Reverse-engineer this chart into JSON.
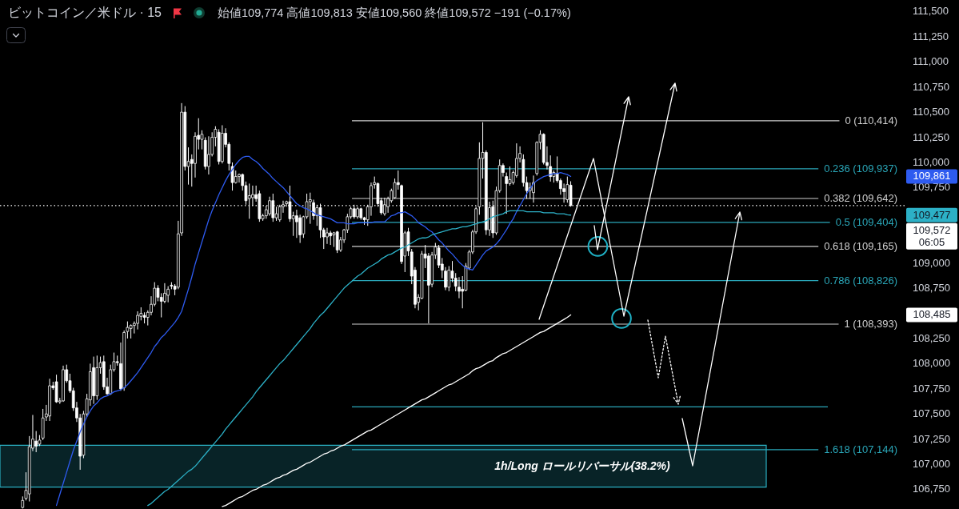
{
  "chart_data": {
    "type": "candlestick",
    "title": "ビットコイン／米ドル · 15",
    "subtitle": "始値109,774 高値109,813 安値109,560 終値109,572 −191 (−0.17%)",
    "categories": [
      null,
      null,
      null,
      null,
      null,
      null,
      null,
      null,
      null,
      null,
      null,
      null,
      null,
      null,
      null,
      null,
      null,
      null,
      null,
      null,
      null,
      null,
      null,
      null,
      null,
      null,
      null,
      null,
      null,
      null,
      null,
      null,
      null,
      null,
      null,
      null,
      null,
      null,
      null,
      null,
      null,
      null,
      null,
      null,
      null,
      null,
      null,
      null,
      null,
      null,
      null,
      null,
      null,
      null,
      null,
      null,
      null,
      null,
      null,
      null,
      null,
      null,
      null,
      null,
      null,
      null,
      null,
      null,
      null,
      null,
      null,
      null,
      null,
      null,
      null,
      null,
      null,
      null,
      null,
      null,
      null,
      null,
      null,
      null,
      null,
      null,
      null,
      null,
      null,
      null,
      null,
      null,
      null,
      null,
      null,
      null,
      null,
      null,
      null,
      null,
      null,
      null,
      null,
      null,
      null,
      null,
      null,
      null,
      null,
      null,
      null,
      null,
      null,
      null,
      null,
      null,
      null,
      null,
      null,
      null,
      null,
      null,
      null,
      null,
      null,
      null,
      null,
      null,
      null,
      null,
      null,
      null,
      null,
      null,
      null,
      null,
      null,
      null,
      null,
      null,
      null,
      null,
      null,
      null,
      null,
      null,
      null,
      null,
      null,
      null,
      null,
      null,
      null,
      null,
      null,
      null,
      null,
      null,
      null,
      null,
      null,
      null,
      null,
      null,
      null,
      null,
      null,
      null,
      null,
      null,
      null,
      null,
      null,
      null,
      null,
      null,
      null,
      null,
      null,
      null,
      null,
      null,
      null,
      null,
      null,
      null,
      null,
      null,
      null,
      null,
      null,
      null,
      null,
      null,
      null,
      null,
      null,
      null,
      null,
      null,
      null,
      null,
      null,
      null,
      null,
      null,
      null,
      null,
      null,
      null,
      null,
      null,
      null,
      null,
      null,
      null,
      null,
      null,
      null,
      null,
      null,
      null,
      null,
      null,
      null,
      null,
      null,
      null,
      null,
      null,
      null,
      null,
      null,
      null,
      null,
      null,
      null,
      null,
      null,
      null,
      null,
      null,
      null,
      null,
      null,
      null,
      null,
      null,
      null,
      null,
      null,
      null,
      null,
      null,
      null,
      null,
      null,
      null,
      null,
      null,
      null,
      null,
      null,
      null,
      null
    ],
    "ohlc": [
      null,
      null,
      null,
      null,
      null,
      [
        106570,
        106680,
        106560,
        106640
      ],
      [
        106660,
        106920,
        106640,
        106740
      ],
      [
        106705,
        107280,
        106630,
        107175
      ],
      [
        107160,
        107490,
        107130,
        107250
      ],
      [
        107230,
        107330,
        107120,
        107180
      ],
      [
        107200,
        107290,
        107180,
        107240
      ],
      [
        107260,
        107550,
        107240,
        107460
      ],
      [
        107470,
        107590,
        107430,
        107500
      ],
      [
        107480,
        107850,
        107430,
        107780
      ],
      [
        107780,
        107820,
        107740,
        107760
      ],
      [
        107820,
        107890,
        107610,
        107620
      ],
      [
        107620,
        107660,
        107600,
        107630
      ],
      [
        107630,
        107980,
        107620,
        107940
      ],
      [
        107940,
        107990,
        107810,
        107830
      ],
      [
        107830,
        107900,
        107710,
        107730
      ],
      [
        107730,
        107760,
        107530,
        107560
      ],
      [
        107560,
        107620,
        107420,
        107460
      ],
      [
        107460,
        107500,
        106945,
        107080
      ],
      [
        107090,
        107530,
        107060,
        107500
      ],
      [
        107500,
        107700,
        107470,
        107650
      ],
      [
        107640,
        108000,
        107580,
        107920
      ],
      [
        107960,
        108070,
        107600,
        107680
      ],
      [
        107680,
        108080,
        107640,
        107960
      ],
      [
        107960,
        108070,
        107900,
        108010
      ],
      [
        108020,
        108080,
        107740,
        107770
      ],
      [
        107770,
        107860,
        107690,
        107700
      ],
      [
        107700,
        107990,
        107690,
        107940
      ],
      [
        107940,
        108110,
        107920,
        108020
      ],
      [
        108020,
        108080,
        107980,
        108010
      ],
      [
        108000,
        108210,
        107730,
        107750
      ],
      [
        107760,
        108330,
        107730,
        108310
      ],
      [
        108320,
        108420,
        108250,
        108360
      ],
      [
        108350,
        108390,
        108250,
        108380
      ],
      [
        108380,
        108420,
        108300,
        108400
      ],
      [
        108400,
        108520,
        108340,
        108480
      ],
      [
        108470,
        108560,
        108430,
        108500
      ],
      [
        108480,
        108510,
        108400,
        108460
      ],
      [
        108460,
        108530,
        108380,
        108510
      ],
      [
        108510,
        108670,
        108480,
        108590
      ],
      [
        108590,
        108810,
        108570,
        108750
      ],
      [
        108750,
        108780,
        108620,
        108660
      ],
      [
        108660,
        108700,
        108460,
        108620
      ],
      [
        108620,
        108800,
        108600,
        108700
      ],
      [
        108680,
        108770,
        108610,
        108740
      ],
      [
        108780,
        108810,
        108740,
        108770
      ],
      [
        108770,
        108790,
        108680,
        108740
      ],
      [
        108760,
        109420,
        108740,
        109290
      ],
      [
        109300,
        110590,
        109270,
        110500
      ],
      [
        110500,
        110560,
        109920,
        109960
      ],
      [
        109960,
        110150,
        109780,
        110010
      ],
      [
        110030,
        110080,
        109760,
        109990
      ],
      [
        109990,
        110300,
        109850,
        110260
      ],
      [
        110270,
        110440,
        110130,
        110230
      ],
      [
        110230,
        110320,
        110130,
        110280
      ],
      [
        110220,
        110250,
        109930,
        109960
      ],
      [
        109960,
        110260,
        109880,
        110080
      ],
      [
        110080,
        110300,
        110060,
        110250
      ],
      [
        110250,
        110360,
        110160,
        110330
      ],
      [
        110300,
        110330,
        109980,
        110010
      ],
      [
        110010,
        110370,
        109990,
        110290
      ],
      [
        110290,
        110340,
        110150,
        110180
      ],
      [
        110180,
        110200,
        109920,
        109990
      ],
      [
        109960,
        110000,
        109720,
        109800
      ],
      [
        109800,
        109920,
        109790,
        109860
      ],
      [
        109860,
        109890,
        109800,
        109880
      ],
      [
        109880,
        109890,
        109720,
        109770
      ],
      [
        109770,
        109810,
        109580,
        109620
      ],
      [
        109640,
        109790,
        109440,
        109670
      ],
      [
        109650,
        109770,
        109570,
        109680
      ],
      [
        109680,
        109770,
        109610,
        109640
      ],
      [
        109690,
        109720,
        109410,
        109440
      ],
      [
        109440,
        109490,
        109420,
        109470
      ],
      [
        109470,
        109570,
        109440,
        109530
      ],
      [
        109490,
        109660,
        109470,
        109620
      ],
      [
        109620,
        109690,
        109410,
        109450
      ],
      [
        109450,
        109560,
        109420,
        109490
      ],
      [
        109430,
        109580,
        109410,
        109560
      ],
      [
        109560,
        109620,
        109500,
        109580
      ],
      [
        109590,
        109620,
        109560,
        109610
      ],
      [
        109610,
        109770,
        109410,
        109440
      ],
      [
        109440,
        109510,
        109270,
        109470
      ],
      [
        109470,
        109530,
        109250,
        109410
      ],
      [
        109450,
        109480,
        109200,
        109280
      ],
      [
        109290,
        109470,
        109250,
        109460
      ],
      [
        109460,
        109690,
        109440,
        109610
      ],
      [
        109610,
        109700,
        109390,
        109630
      ],
      [
        109600,
        109630,
        109430,
        109470
      ],
      [
        109470,
        109580,
        109370,
        109550
      ],
      [
        109550,
        109590,
        109250,
        109330
      ],
      [
        109330,
        109350,
        109140,
        109260
      ],
      [
        109260,
        109350,
        109190,
        109300
      ],
      [
        109300,
        109320,
        109180,
        109270
      ],
      [
        109280,
        109310,
        109160,
        109300
      ],
      [
        109310,
        109320,
        109100,
        109130
      ],
      [
        109130,
        109260,
        109110,
        109230
      ],
      [
        109230,
        109340,
        109200,
        109330
      ],
      [
        109330,
        109490,
        109300,
        109460
      ],
      [
        109460,
        109560,
        109440,
        109540
      ],
      [
        109540,
        109580,
        109440,
        109460
      ],
      [
        109460,
        109560,
        109440,
        109540
      ],
      [
        109540,
        109550,
        109430,
        109450
      ],
      [
        109450,
        109460,
        109380,
        109430
      ],
      [
        109430,
        109580,
        109370,
        109560
      ],
      [
        109560,
        109800,
        109470,
        109770
      ],
      [
        109780,
        109860,
        109740,
        109800
      ],
      [
        109790,
        109800,
        109560,
        109590
      ],
      [
        109620,
        109650,
        109480,
        109500
      ],
      [
        109490,
        109650,
        109470,
        109580
      ],
      [
        109560,
        109660,
        109500,
        109640
      ],
      [
        109620,
        109740,
        109600,
        109720
      ],
      [
        109650,
        109840,
        109640,
        109800
      ],
      [
        109800,
        109920,
        109730,
        109780
      ],
      [
        109770,
        109780,
        108990,
        109015
      ],
      [
        109070,
        109320,
        108910,
        109300
      ],
      [
        109310,
        109350,
        109070,
        109120
      ],
      [
        109110,
        109140,
        108790,
        108870
      ],
      [
        108930,
        108960,
        108550,
        108590
      ],
      [
        108610,
        108690,
        108530,
        108660
      ],
      [
        108650,
        109120,
        108640,
        109090
      ],
      [
        109090,
        109180,
        108950,
        109050
      ],
      [
        109070,
        109100,
        108400,
        108780
      ],
      [
        108790,
        109110,
        108760,
        109080
      ],
      [
        109080,
        109200,
        109040,
        109160
      ],
      [
        109150,
        109180,
        108950,
        108980
      ],
      [
        108990,
        109050,
        108850,
        108930
      ],
      [
        108920,
        108960,
        108730,
        108760
      ],
      [
        108760,
        108970,
        108720,
        108930
      ],
      [
        108920,
        109020,
        108810,
        108850
      ],
      [
        108850,
        108900,
        108720,
        108770
      ],
      [
        108760,
        108860,
        108650,
        108720
      ],
      [
        108740,
        108870,
        108550,
        108720
      ],
      [
        108730,
        109000,
        108720,
        108970
      ],
      [
        108950,
        109130,
        108930,
        109110
      ],
      [
        109110,
        109330,
        109090,
        109310
      ],
      [
        109310,
        109560,
        109290,
        109540
      ],
      [
        109560,
        110200,
        109480,
        110040
      ],
      [
        110040,
        110400,
        109840,
        110100
      ],
      [
        110100,
        110120,
        109280,
        109330
      ],
      [
        109330,
        109610,
        109270,
        109550
      ],
      [
        109560,
        109620,
        109250,
        109300
      ],
      [
        109300,
        109760,
        109280,
        109720
      ],
      [
        109720,
        110030,
        109700,
        109970
      ],
      [
        109970,
        109990,
        109860,
        109900
      ],
      [
        109860,
        109900,
        109490,
        109790
      ],
      [
        109790,
        109960,
        109770,
        109830
      ],
      [
        109800,
        109920,
        109780,
        109900
      ],
      [
        109870,
        110190,
        109850,
        110040
      ],
      [
        110040,
        110160,
        110000,
        110090
      ],
      [
        110030,
        110080,
        109760,
        109800
      ],
      [
        109800,
        109860,
        109640,
        109720
      ],
      [
        109720,
        109800,
        109640,
        109750
      ],
      [
        109700,
        109870,
        109600,
        109800
      ],
      [
        109890,
        110210,
        109870,
        110200
      ],
      [
        110200,
        110320,
        110130,
        110280
      ],
      [
        110280,
        110290,
        109980,
        110000
      ],
      [
        110000,
        110160,
        109930,
        109970
      ],
      [
        109960,
        110070,
        109810,
        109860
      ],
      [
        109860,
        109920,
        109800,
        109900
      ],
      [
        109890,
        110060,
        109800,
        109820
      ],
      [
        109820,
        109840,
        109680,
        109740
      ],
      [
        109740,
        109790,
        109600,
        109710
      ],
      [
        109630,
        109860,
        109600,
        109780
      ],
      [
        109774,
        109813,
        109560,
        109572
      ],
      null,
      null,
      null,
      null,
      null,
      null,
      null,
      null,
      null,
      null,
      null,
      null,
      null,
      null,
      null,
      null,
      null,
      null,
      null,
      null,
      null,
      null,
      null,
      null,
      null,
      null,
      null,
      null,
      null,
      null,
      null,
      null,
      null,
      null,
      null,
      null,
      null,
      null,
      null,
      null,
      null,
      null,
      null,
      null,
      null,
      null,
      null,
      null,
      null,
      null,
      null,
      null,
      null,
      null,
      null,
      null,
      null,
      null,
      null,
      null,
      null,
      null,
      null,
      null,
      null,
      null,
      null,
      null,
      null,
      null,
      null,
      null,
      null,
      null,
      null,
      null,
      null,
      null,
      null,
      null,
      null,
      null,
      null,
      null,
      null,
      null,
      null,
      null,
      null,
      null,
      null,
      null,
      null,
      null,
      null,
      null,
      null
    ],
    "series": [
      {
        "type": "line",
        "color": "#2e5bf0",
        "values": [
          null,
          null,
          null,
          null,
          null,
          null,
          null,
          null,
          null,
          null,
          null,
          null,
          null,
          null,
          null,
          106590,
          106700,
          106810,
          106920,
          107030,
          107140,
          107230,
          107320,
          107400,
          107470,
          107530,
          107580,
          107610,
          107650,
          107670,
          107680,
          107700,
          107720,
          107730,
          107740,
          107760,
          107790,
          107830,
          107870,
          107910,
          107960,
          108010,
          108060,
          108110,
          108170,
          108210,
          108260,
          108290,
          108330,
          108370,
          108410,
          108460,
          108520,
          108630,
          108740,
          108860,
          108990,
          109100,
          109210,
          109320,
          109430,
          109520,
          109600,
          109680,
          109750,
          109820,
          109880,
          109930,
          109980,
          110020,
          110050,
          110060,
          110060,
          110030,
          110010,
          109980,
          109940,
          109910,
          109880,
          109840,
          109810,
          109780,
          109750,
          109710,
          109670,
          109630,
          109590,
          109570,
          109550,
          109540,
          109520,
          109500,
          109480,
          109470,
          109460,
          109450,
          109440,
          109420,
          109400,
          109400,
          109400,
          109390,
          109390,
          109390,
          109400,
          109400,
          109400,
          109400,
          109400,
          109410,
          109410,
          109410,
          109410,
          109440,
          109470,
          109480,
          109500,
          109500,
          109510,
          109490,
          109470,
          109440,
          109400,
          109380,
          109360,
          109330,
          109310,
          109270,
          109230,
          109200,
          109160,
          109120,
          109090,
          109050,
          109010,
          108980,
          108950,
          108940,
          108930,
          108980,
          109030,
          109080,
          109120,
          109140,
          109160,
          109190,
          109230,
          109280,
          109330,
          109390,
          109440,
          109510,
          109570,
          109630,
          109690,
          109740,
          109790,
          109820,
          109840,
          109860,
          109870,
          109880,
          109890,
          109890,
          109900,
          109890,
          109880,
          109861,
          null,
          null,
          null,
          null,
          null,
          null,
          null,
          null,
          null,
          null,
          null,
          null,
          null,
          null,
          null,
          null,
          null,
          null,
          null,
          null,
          null,
          null,
          null,
          null,
          null,
          null,
          null,
          null,
          null,
          null,
          null,
          null,
          null,
          null,
          null,
          null,
          null,
          null,
          null,
          null,
          null,
          null,
          null,
          null,
          null,
          null,
          null,
          null,
          null,
          null,
          null,
          null,
          null,
          null,
          null,
          null,
          null,
          null,
          null,
          null,
          null,
          null,
          null,
          null,
          null,
          null,
          null,
          null,
          null,
          null,
          null,
          null,
          null,
          null,
          null,
          null,
          null,
          null,
          null,
          null,
          null,
          null,
          null,
          null,
          null,
          null,
          null,
          null,
          null,
          null,
          null,
          null,
          null,
          null,
          null,
          null,
          null
        ]
      },
      {
        "type": "line",
        "color": "#2cb0c6",
        "values": [
          null,
          null,
          null,
          null,
          null,
          null,
          null,
          null,
          null,
          null,
          null,
          null,
          null,
          null,
          null,
          null,
          null,
          null,
          null,
          null,
          null,
          null,
          null,
          null,
          null,
          null,
          null,
          null,
          null,
          null,
          null,
          null,
          null,
          null,
          null,
          null,
          null,
          null,
          null,
          null,
          null,
          null,
          106590,
          106610,
          106640,
          106670,
          106700,
          106730,
          106750,
          106780,
          106810,
          106840,
          106870,
          106900,
          106930,
          106950,
          106980,
          107020,
          107060,
          107100,
          107140,
          107180,
          107220,
          107260,
          107300,
          107350,
          107390,
          107430,
          107470,
          107510,
          107550,
          107590,
          107630,
          107670,
          107720,
          107760,
          107800,
          107840,
          107880,
          107920,
          107960,
          108000,
          108030,
          108070,
          108110,
          108150,
          108190,
          108230,
          108270,
          108310,
          108350,
          108400,
          108440,
          108480,
          108510,
          108550,
          108590,
          108630,
          108670,
          108710,
          108750,
          108780,
          108810,
          108840,
          108870,
          108890,
          108920,
          108950,
          108970,
          108990,
          109010,
          109040,
          109060,
          109080,
          109090,
          109110,
          109130,
          109150,
          109160,
          109180,
          109200,
          109220,
          109240,
          109250,
          109250,
          109260,
          109280,
          109290,
          109300,
          109310,
          109320,
          109330,
          109340,
          109340,
          109350,
          109360,
          109360,
          109370,
          109380,
          109390,
          109400,
          109410,
          109420,
          109440,
          109460,
          109470,
          109480,
          109490,
          109510,
          109520,
          109520,
          109520,
          109520,
          109520,
          109510,
          109510,
          109510,
          109510,
          109510,
          109500,
          109500,
          109500,
          109500,
          109490,
          109490,
          109490,
          109480,
          109477,
          null,
          null,
          null,
          null,
          null,
          null,
          null,
          null,
          null,
          null,
          null,
          null,
          null,
          null,
          null,
          null,
          null,
          null,
          null,
          null,
          null,
          null,
          null,
          null,
          null,
          null,
          null,
          null,
          null,
          null,
          null,
          null,
          null,
          null,
          null,
          null,
          null,
          null,
          null,
          null,
          null,
          null,
          null,
          null,
          null,
          null,
          null,
          null,
          null,
          null,
          null,
          null,
          null,
          null,
          null,
          null,
          null,
          null,
          null,
          null,
          null,
          null,
          null,
          null,
          null,
          null,
          null,
          null,
          null,
          null,
          null,
          null,
          null,
          null,
          null,
          null,
          null,
          null,
          null,
          null,
          null,
          null,
          null,
          null,
          null,
          null,
          null,
          null,
          null,
          null,
          null,
          null,
          null,
          null,
          null,
          null,
          null
        ]
      },
      {
        "type": "line",
        "color": "#ffffff",
        "values": [
          null,
          null,
          null,
          null,
          null,
          null,
          null,
          null,
          null,
          null,
          null,
          null,
          null,
          null,
          null,
          null,
          null,
          null,
          null,
          null,
          null,
          null,
          null,
          null,
          null,
          null,
          null,
          null,
          null,
          null,
          null,
          null,
          null,
          null,
          null,
          null,
          null,
          null,
          null,
          null,
          null,
          null,
          null,
          null,
          null,
          null,
          null,
          null,
          null,
          null,
          null,
          null,
          null,
          null,
          null,
          null,
          null,
          null,
          null,
          null,
          null,
          null,
          null,
          null,
          106580,
          106590,
          106610,
          106630,
          106650,
          106670,
          106680,
          106700,
          106720,
          106740,
          106750,
          106770,
          106790,
          106800,
          106820,
          106840,
          106860,
          106870,
          106890,
          106900,
          106920,
          106940,
          106950,
          106970,
          106990,
          107010,
          107020,
          107040,
          107060,
          107080,
          107100,
          107110,
          107130,
          107140,
          107160,
          107180,
          107190,
          107210,
          107230,
          107250,
          107270,
          107290,
          107310,
          107330,
          107340,
          107360,
          107380,
          107400,
          107420,
          107440,
          107460,
          107480,
          107500,
          107520,
          107540,
          107560,
          107580,
          107600,
          107620,
          107640,
          107650,
          107670,
          107690,
          107710,
          107730,
          107750,
          107770,
          107790,
          107800,
          107820,
          107840,
          107860,
          107880,
          107900,
          107930,
          107950,
          107960,
          107980,
          108000,
          108020,
          108030,
          108060,
          108080,
          108100,
          108110,
          108130,
          108150,
          108170,
          108190,
          108210,
          108230,
          108250,
          108270,
          108290,
          108310,
          108320,
          108340,
          108360,
          108380,
          108400,
          108420,
          108440,
          108460,
          108485,
          null,
          null,
          null,
          null,
          null,
          null,
          null,
          null,
          null,
          null,
          null,
          null,
          null,
          null,
          null,
          null,
          null,
          null,
          null,
          null,
          null,
          null,
          null,
          null,
          null,
          null,
          null,
          null,
          null,
          null,
          null,
          null,
          null,
          null,
          null,
          null,
          null,
          null,
          null,
          null,
          null,
          null,
          null,
          null,
          null,
          null,
          null,
          null,
          null,
          null,
          null,
          null,
          null,
          null,
          null,
          null,
          null,
          null,
          null,
          null,
          null,
          null,
          null,
          null,
          null,
          null,
          null,
          null,
          null,
          null,
          null,
          null,
          null,
          null,
          null,
          null,
          null,
          null,
          null,
          null,
          null,
          null,
          null,
          null,
          null,
          null,
          null,
          null,
          null,
          null,
          null,
          null,
          null,
          null,
          null,
          null,
          null
        ]
      },
      {
        "type": "scatter",
        "color": "#1fb0c4",
        "marker": "circle",
        "values": [
          null,
          null,
          null,
          null,
          null,
          null,
          null,
          null,
          null,
          null,
          null,
          null,
          null,
          null,
          null,
          null,
          null,
          null,
          null,
          null,
          null,
          null,
          null,
          null,
          null,
          null,
          null,
          null,
          null,
          null,
          null,
          null,
          null,
          null,
          null,
          null,
          null,
          null,
          null,
          null,
          null,
          null,
          null,
          null,
          null,
          null,
          null,
          null,
          null,
          null,
          null,
          null,
          null,
          null,
          null,
          null,
          null,
          null,
          null,
          null,
          null,
          null,
          null,
          null,
          null,
          null,
          null,
          null,
          null,
          null,
          null,
          null,
          null,
          null,
          null,
          null,
          null,
          null,
          null,
          null,
          null,
          null,
          null,
          null,
          null,
          null,
          null,
          null,
          null,
          null,
          null,
          null,
          null,
          null,
          null,
          null,
          null,
          null,
          null,
          null,
          null,
          null,
          null,
          null,
          null,
          null,
          null,
          null,
          null,
          null,
          null,
          null,
          null,
          null,
          null,
          null,
          null,
          null,
          null,
          null,
          null,
          null,
          null,
          null,
          null,
          null,
          null,
          null,
          null,
          null,
          null,
          null,
          null,
          null,
          null,
          null,
          null,
          null,
          null,
          null,
          null,
          null,
          null,
          null,
          null,
          null,
          null,
          null,
          null,
          null,
          null,
          null,
          null,
          null,
          null,
          null,
          null,
          null,
          null,
          null,
          null,
          null,
          null,
          null,
          null,
          null,
          null,
          null,
          null,
          null,
          null,
          null,
          null,
          null,
          null,
          109165,
          null,
          null,
          null,
          null,
          null,
          null,
          108450,
          null,
          null,
          null,
          null,
          null,
          null,
          null,
          null,
          null,
          null,
          null,
          null,
          null,
          null,
          null,
          null,
          null,
          null,
          null,
          null,
          null,
          null,
          null,
          null,
          null,
          null,
          null,
          null,
          null,
          null,
          null,
          null,
          null,
          null,
          null,
          null,
          null,
          null,
          null,
          null,
          null,
          null,
          null,
          null,
          null,
          null,
          null,
          null,
          null,
          null,
          null,
          null,
          null,
          null,
          null,
          null,
          null,
          null,
          null,
          null,
          null,
          null,
          null,
          null,
          null,
          null,
          null,
          null,
          null,
          null,
          null,
          null,
          null,
          null,
          null,
          null,
          null,
          null,
          null,
          null,
          null,
          null
        ]
      }
    ],
    "ylim": [
      106555,
      111615
    ],
    "yticks": [
      {
        "value": 106750,
        "label": "106,750"
      },
      {
        "value": 107000,
        "label": "107,000"
      },
      {
        "value": 107250,
        "label": "107,250"
      },
      {
        "value": 107500,
        "label": "107,500"
      },
      {
        "value": 107750,
        "label": "107,750"
      },
      {
        "value": 108000,
        "label": "108,000"
      },
      {
        "value": 108250,
        "label": "108,250"
      },
      {
        "value": 108485,
        "label": "108,485"
      },
      {
        "value": 108750,
        "label": "108,750"
      },
      {
        "value": 109000,
        "label": "109,000"
      },
      {
        "value": 109477,
        "label": "109,477"
      },
      {
        "value": 109750,
        "label": "109,750"
      },
      {
        "value": 109861,
        "label": "109,861"
      },
      {
        "value": 110000,
        "label": "110,000"
      },
      {
        "value": 110250,
        "label": "110,250"
      },
      {
        "value": 110500,
        "label": "110,500"
      },
      {
        "value": 110750,
        "label": "110,750"
      },
      {
        "value": 111000,
        "label": "111,000"
      },
      {
        "value": 111250,
        "label": "111,250"
      },
      {
        "value": 111500,
        "label": "111,500"
      }
    ],
    "tick_labels": "y",
    "ref_lines": [
      {
        "axis": "y",
        "value": 110414,
        "label": "0 (110,414)",
        "color": "#cfcfcf"
      },
      {
        "axis": "y",
        "value": 109937,
        "label": "0.236 (109,937)",
        "color": "#2aa7b9"
      },
      {
        "axis": "y",
        "value": 109642,
        "label": "0.382 (109,642)",
        "color": "#cfcfcf"
      },
      {
        "axis": "y",
        "value": 109404,
        "label": "0.5 (109,404)",
        "color": "#2aa7b9"
      },
      {
        "axis": "y",
        "value": 109165,
        "label": "0.618 (109,165)",
        "color": "#cfcfcf"
      },
      {
        "axis": "y",
        "value": 108826,
        "label": "0.786 (108,826)",
        "color": "#2aa7b9"
      },
      {
        "axis": "y",
        "value": 108393,
        "label": "1 (108,393)",
        "color": "#cfcfcf"
      },
      {
        "axis": "y",
        "value": 107144,
        "label": "1.618 (107,144)",
        "color": "#2aa7b9"
      },
      {
        "axis": "y",
        "value": 107570,
        "color": "#2aa7b9"
      },
      {
        "axis": "y",
        "value": 109572,
        "label": "109,572\n06:05",
        "color": "#ffffff",
        "line_style": "dotted"
      }
    ],
    "bands": [
      {
        "axis": "y",
        "from": 106773,
        "to": 107188,
        "label": "1h/Long ロールリバーサル(38.2%)",
        "color": "#2ab0c2"
      }
    ]
  }
}
